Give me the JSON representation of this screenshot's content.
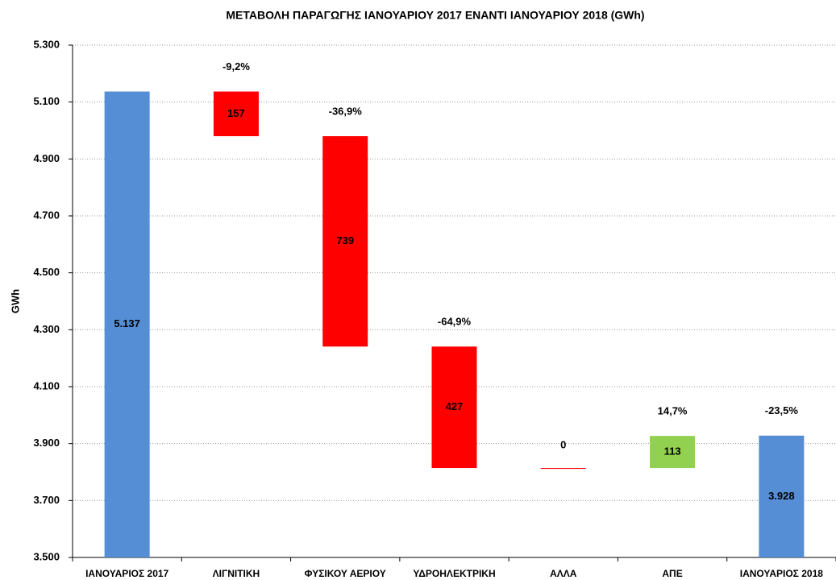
{
  "chart_data": {
    "type": "waterfall",
    "title": "ΜΕΤΑΒΟΛΗ ΠΑΡΑΓΩΓΗΣ ΙΑΝΟΥΑΡΙΟΥ 2017 ΕΝΑΝΤΙ ΙΑΝΟΥΑΡΙΟΥ 2018 (GWh)",
    "y_label": "GWh",
    "categories": [
      "ΙΑΝΟΥΑΡΙΟΣ 2017",
      "ΛΙΓΝΙΤΙΚΗ",
      "ΦΥΣΙΚΟΥ ΑΕΡΙΟΥ",
      "ΥΔΡΟΗΛΕΚΤΡΙΚΗ",
      "ΑΛΛΑ",
      "ΑΠΕ",
      "ΙΑΝΟΥΑΡΙΟΣ 2018"
    ],
    "measure": [
      "total",
      "relative",
      "relative",
      "relative",
      "relative",
      "relative",
      "total"
    ],
    "values": [
      5137,
      -157,
      -739,
      -427,
      0,
      113,
      3928
    ],
    "value_labels": [
      "5.137",
      "157",
      "739",
      "427",
      "0",
      "113",
      "3.928"
    ],
    "percent_labels": [
      null,
      "-9,2%",
      "-36,9%",
      "-64,9%",
      null,
      "14,7%",
      "-23,5%"
    ],
    "colors": [
      "#558ed5",
      "#ff0000",
      "#ff0000",
      "#ff0000",
      "#ff0000",
      "#92d050",
      "#558ed5"
    ],
    "ylim": [
      3500,
      5300
    ],
    "yticks": [
      {
        "value": 3500,
        "label": "3.500"
      },
      {
        "value": 3700,
        "label": "3.700"
      },
      {
        "value": 3900,
        "label": "3.900"
      },
      {
        "value": 4100,
        "label": "4.100"
      },
      {
        "value": 4300,
        "label": "4.300"
      },
      {
        "value": 4500,
        "label": "4.500"
      },
      {
        "value": 4700,
        "label": "4.700"
      },
      {
        "value": 4900,
        "label": "4.900"
      },
      {
        "value": 5100,
        "label": "5.100"
      },
      {
        "value": 5300,
        "label": "5.300"
      }
    ],
    "grid": true
  }
}
